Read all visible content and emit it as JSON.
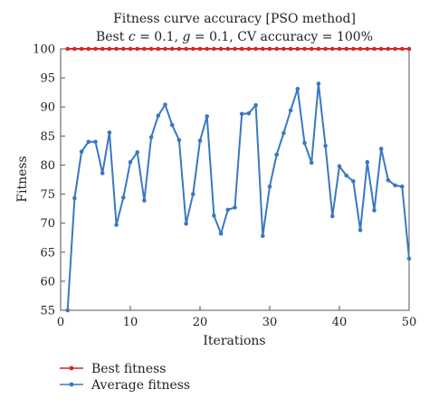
{
  "chart_data": {
    "type": "line",
    "title": "Fitness curve accuracy [PSO method]",
    "subtitle_parts": {
      "p1": "Best ",
      "c": "c",
      "p2": " = 0.1, ",
      "g": "g",
      "p3": " = 0.1, CV accuracy = 100%"
    },
    "xlabel": "Iterations",
    "ylabel": "Fitness",
    "xlim": [
      0,
      50
    ],
    "ylim": [
      55,
      100
    ],
    "xticks": [
      0,
      10,
      20,
      30,
      40,
      50
    ],
    "yticks": [
      55,
      60,
      65,
      70,
      75,
      80,
      85,
      90,
      95,
      100
    ],
    "grid": false,
    "legend_position": "bottom-left, below plot",
    "series": [
      {
        "name": "Best fitness",
        "color": "#d62728",
        "x": [
          1,
          2,
          3,
          4,
          5,
          6,
          7,
          8,
          9,
          10,
          11,
          12,
          13,
          14,
          15,
          16,
          17,
          18,
          19,
          20,
          21,
          22,
          23,
          24,
          25,
          26,
          27,
          28,
          29,
          30,
          31,
          32,
          33,
          34,
          35,
          36,
          37,
          38,
          39,
          40,
          41,
          42,
          43,
          44,
          45,
          46,
          47,
          48,
          49,
          50
        ],
        "values": [
          100,
          100,
          100,
          100,
          100,
          100,
          100,
          100,
          100,
          100,
          100,
          100,
          100,
          100,
          100,
          100,
          100,
          100,
          100,
          100,
          100,
          100,
          100,
          100,
          100,
          100,
          100,
          100,
          100,
          100,
          100,
          100,
          100,
          100,
          100,
          100,
          100,
          100,
          100,
          100,
          100,
          100,
          100,
          100,
          100,
          100,
          100,
          100,
          100,
          100
        ]
      },
      {
        "name": "Average fitness",
        "color": "#3a78c2",
        "x": [
          1,
          2,
          3,
          4,
          5,
          6,
          7,
          8,
          9,
          10,
          11,
          12,
          13,
          14,
          15,
          16,
          17,
          18,
          19,
          20,
          21,
          22,
          23,
          24,
          25,
          26,
          27,
          28,
          29,
          30,
          31,
          32,
          33,
          34,
          35,
          36,
          37,
          38,
          39,
          40,
          41,
          42,
          43,
          44,
          45,
          46,
          47,
          48,
          49,
          50
        ],
        "values": [
          55.0,
          74.3,
          82.3,
          84.0,
          84.0,
          78.6,
          85.6,
          69.7,
          74.4,
          80.5,
          82.2,
          73.9,
          84.8,
          88.5,
          90.4,
          86.9,
          84.3,
          69.9,
          75.0,
          84.2,
          88.4,
          71.3,
          68.2,
          72.3,
          72.7,
          88.8,
          88.9,
          90.3,
          67.8,
          76.3,
          81.8,
          85.5,
          89.4,
          93.1,
          83.8,
          80.4,
          94.0,
          83.3,
          71.2,
          79.8,
          78.2,
          77.2,
          68.8,
          80.5,
          72.2,
          82.8,
          77.4,
          76.5,
          76.3,
          63.9
        ]
      }
    ]
  }
}
